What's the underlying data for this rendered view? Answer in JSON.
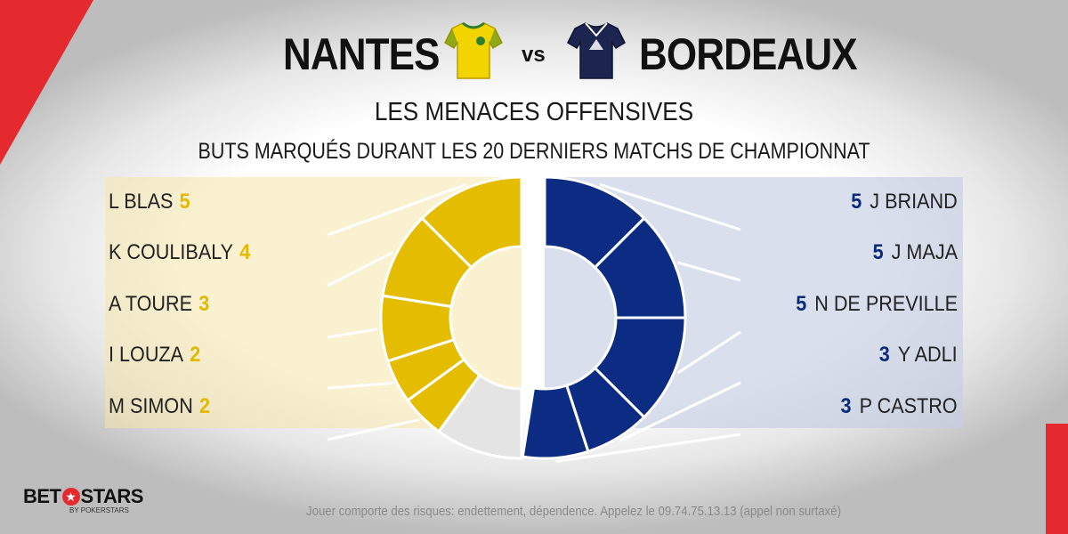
{
  "header": {
    "home_team": "NANTES",
    "vs": "vs",
    "away_team": "BORDEAUX",
    "home_jersey_icon": "yellow-jersey-icon",
    "away_jersey_icon": "navy-jersey-icon"
  },
  "colors": {
    "home": "#e5bd00",
    "away": "#0b2c82",
    "rest": "#e4e4e4",
    "accent": "#e52a2f"
  },
  "chart_data": {
    "type": "pie",
    "title": "LES MENACES OFFENSIVES",
    "subtitle": "BUTS MARQUÉS DURANT LES 20 DERNIERS MATCHS DE CHAMPIONNAT",
    "series": [
      {
        "name": "NANTES",
        "players": [
          "L BLAS",
          "K COULIBALY",
          "A TOURE",
          "I LOUZA",
          "M SIMON"
        ],
        "values": [
          5,
          4,
          3,
          2,
          2
        ],
        "labels": [
          "5",
          "4",
          "3",
          "2",
          "2"
        ]
      },
      {
        "name": "BORDEAUX",
        "players": [
          "J BRIAND",
          "J MAJA",
          "N DE PREVILLE",
          "Y ADLI",
          "P CASTRO"
        ],
        "values": [
          5,
          5,
          5,
          3,
          3
        ],
        "labels": [
          "5",
          "5",
          "5",
          "3",
          "3"
        ]
      }
    ]
  },
  "brand": {
    "name_left": "BET",
    "star": "★",
    "name_right": "STARS",
    "sub": "BY POKERSTARS"
  },
  "footer": {
    "disclaimer": "Jouer comporte des risques: endettement, dépendence.  Appelez le 09.74.75.13.13  (appel non surtaxé)"
  }
}
